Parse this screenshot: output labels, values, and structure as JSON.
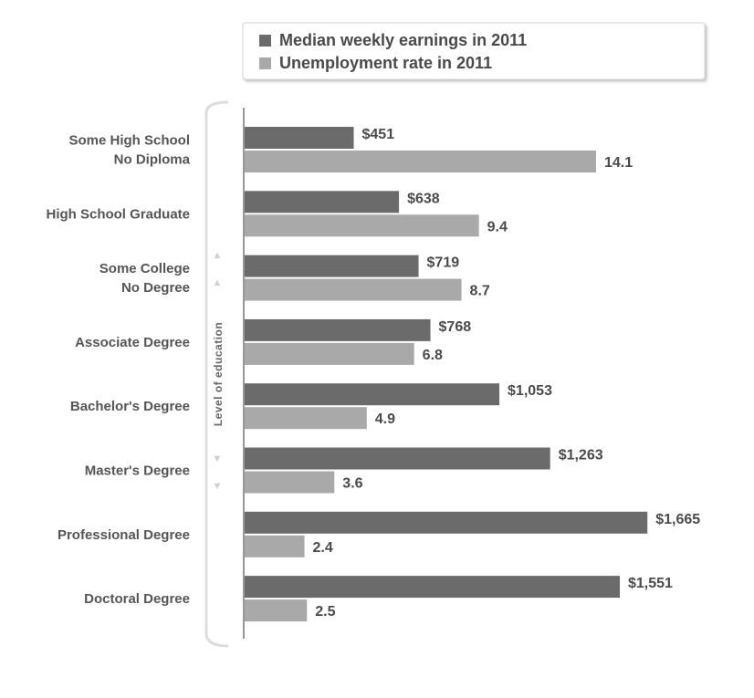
{
  "chart_data": {
    "type": "bar",
    "orientation": "horizontal",
    "ylabel": "Level of education",
    "categories": [
      [
        "Some High School",
        "No Diploma"
      ],
      [
        "High School Graduate"
      ],
      [
        "Some College",
        "No Degree"
      ],
      [
        "Associate Degree"
      ],
      [
        "Bachelor's Degree"
      ],
      [
        "Master's Degree"
      ],
      [
        "Professional Degree"
      ],
      [
        "Doctoral Degree"
      ]
    ],
    "series": [
      {
        "name": "Median weekly earnings in 2011",
        "color": "#6b6b6b",
        "values": [
          451,
          638,
          719,
          768,
          1053,
          1263,
          1665,
          1551
        ],
        "labels": [
          "$451",
          "$638",
          "$719",
          "$768",
          "$1,053",
          "$1,263",
          "$1,665",
          "$1,551"
        ]
      },
      {
        "name": "Unemployment rate in 2011",
        "color": "#a9a9a9",
        "values": [
          14.1,
          9.4,
          8.7,
          6.8,
          4.9,
          3.6,
          2.4,
          2.5
        ],
        "labels": [
          "14.1",
          "9.4",
          "8.7",
          "6.8",
          "4.9",
          "3.6",
          "2.4",
          "2.5"
        ]
      }
    ],
    "legend_position": "top",
    "grid": false
  }
}
